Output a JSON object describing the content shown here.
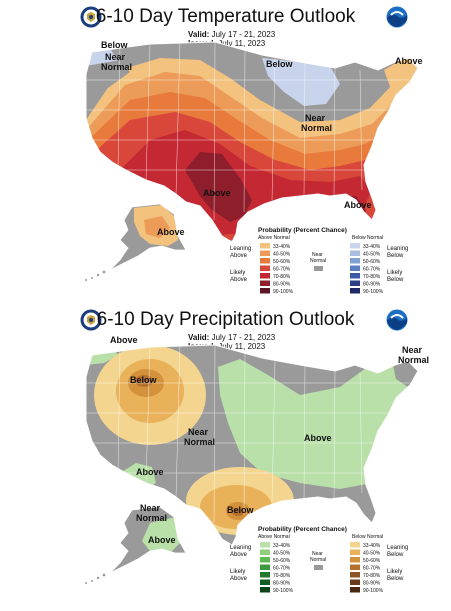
{
  "temperature": {
    "title": "6-10 Day Temperature Outlook",
    "valid_label": "Valid:",
    "valid_dates": "July 17 - 21, 2023",
    "issued_label": "Issued:",
    "issued_date": "July 11, 2023",
    "labels": {
      "below_nw": "Below",
      "near_normal_nw": "Near Normal",
      "below_north": "Below",
      "above_ne": "Above",
      "near_normal_gl": "Near Normal",
      "above_south": "Above",
      "above_fl": "Above",
      "above_ak": "Above"
    },
    "legend": {
      "title": "Probability (Percent Chance)",
      "above_header": "Above Normal",
      "below_header": "Below Normal",
      "near_label": "Near Normal",
      "leaning_above": "Leaning Above",
      "likely_above": "Likely Above",
      "leaning_below": "Leaning Below",
      "likely_below": "Likely Below",
      "bins": [
        "33-40%",
        "40-50%",
        "50-60%",
        "60-70%",
        "70-80%",
        "80-90%",
        "90-100%"
      ],
      "above_colors": [
        "#f2c27e",
        "#ec9c58",
        "#e87a3c",
        "#d8473a",
        "#c42832",
        "#8e1e2c",
        "#5c1426"
      ],
      "below_colors": [
        "#c8d4ec",
        "#a9bde3",
        "#7fa0d3",
        "#5b7fc0",
        "#3b5aa6",
        "#2a3f86",
        "#1e2a66"
      ],
      "near_color": "#9a9a9a"
    }
  },
  "precipitation": {
    "title": "6-10 Day Precipitation Outlook",
    "valid_label": "Valid:",
    "valid_dates": "July 17 - 21, 2023",
    "issued_label": "Issued:",
    "issued_date": "July 11, 2023",
    "labels": {
      "above_nw": "Above",
      "below_west": "Below",
      "near_normal_ne": "Near Normal",
      "near_normal_center": "Near Normal",
      "above_east": "Above",
      "above_sw": "Above",
      "below_tx": "Below",
      "near_normal_ak": "Near Normal",
      "above_ak": "Above"
    },
    "legend": {
      "title": "Probability (Percent Chance)",
      "above_header": "Above Normal",
      "below_header": "Below Normal",
      "near_label": "Near Normal",
      "leaning_above": "Leaning Above",
      "likely_above": "Likely Above",
      "leaning_below": "Leaning Below",
      "likely_below": "Likely Below",
      "bins": [
        "33-40%",
        "40-50%",
        "50-60%",
        "60-70%",
        "70-80%",
        "80-90%",
        "90-100%"
      ],
      "above_colors": [
        "#b8e0a8",
        "#8fcf7c",
        "#5eb955",
        "#3a9a3c",
        "#237a2c",
        "#135e22",
        "#0a4418"
      ],
      "below_colors": [
        "#f3d58f",
        "#e9b25a",
        "#d4913c",
        "#b6702e",
        "#8f5224",
        "#6b3a1c",
        "#4a2814"
      ],
      "near_color": "#9a9a9a"
    }
  },
  "colors": {
    "land_gray": "#9a9a9a",
    "ocean": "#ffffff",
    "state_lines": "#ffffff"
  }
}
